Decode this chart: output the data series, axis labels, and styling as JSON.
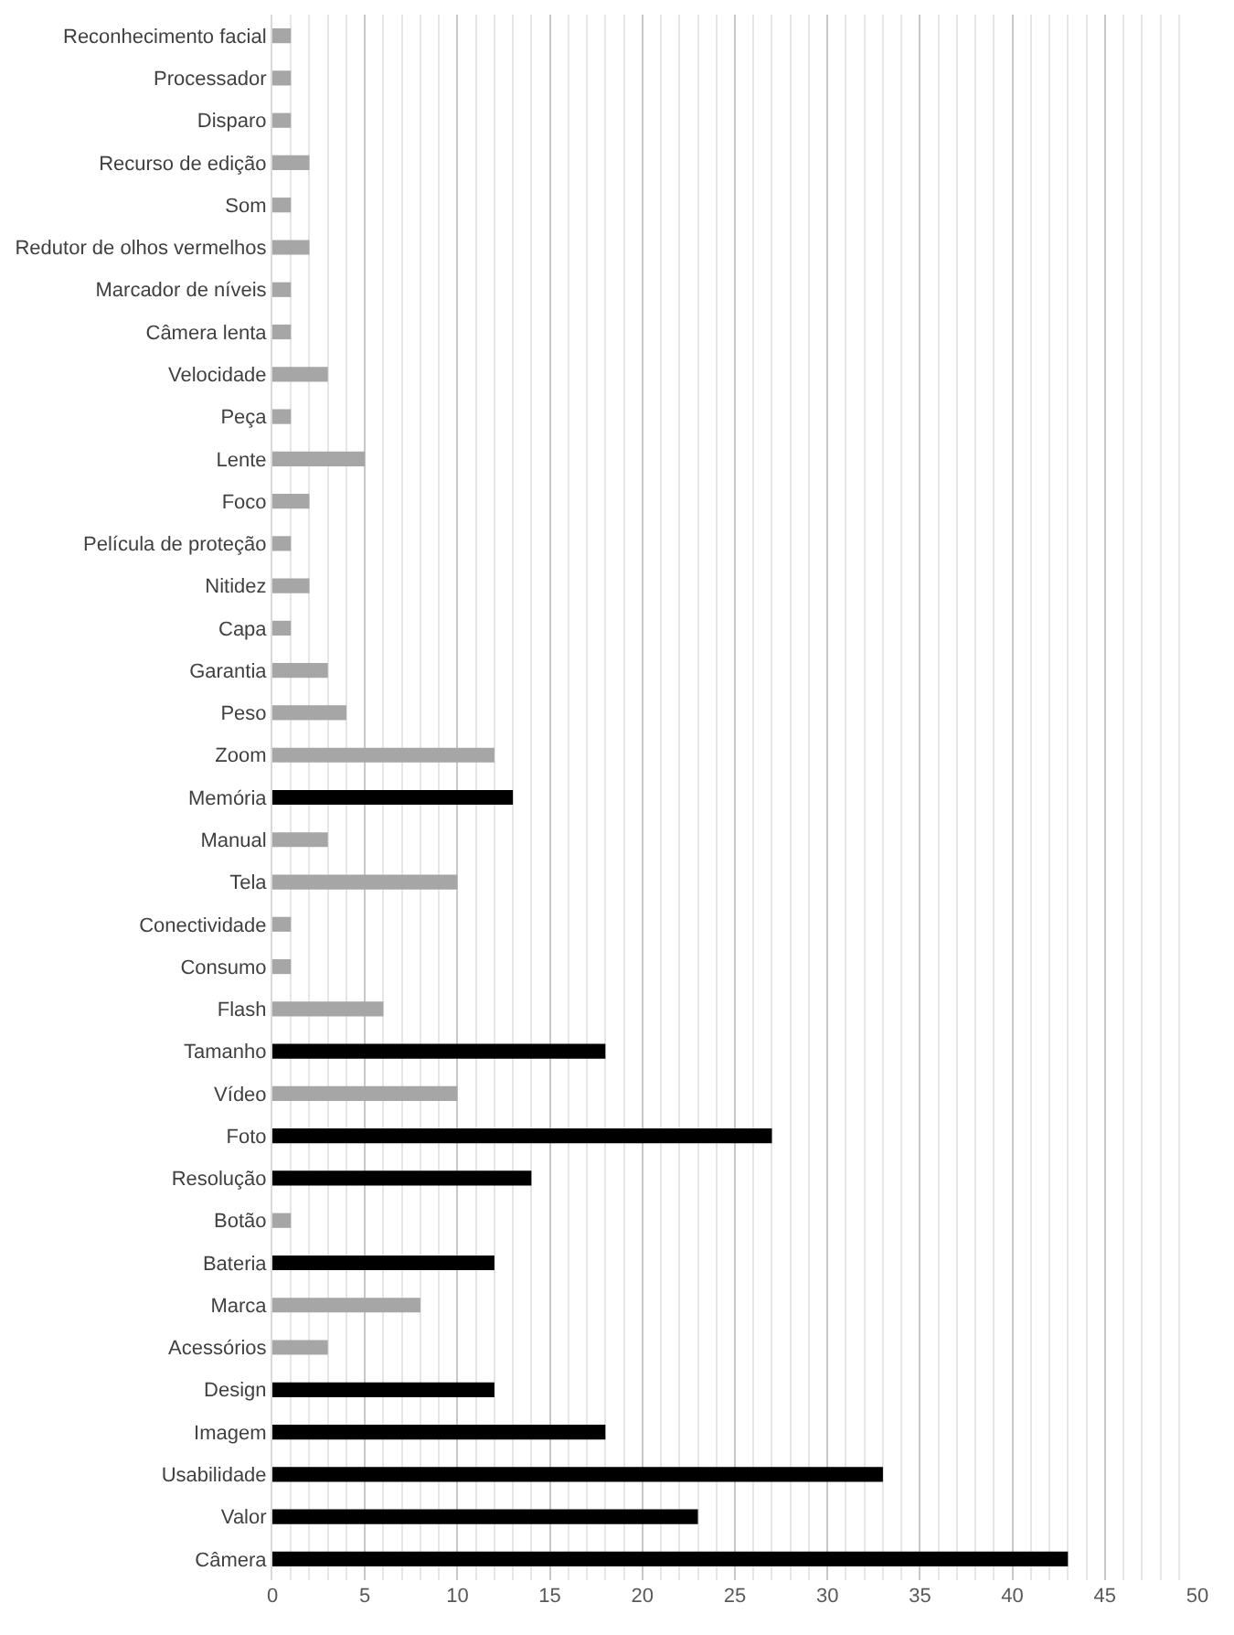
{
  "chart_data": {
    "type": "bar",
    "orientation": "horizontal",
    "categories": [
      "Reconhecimento facial",
      "Processador",
      "Disparo",
      "Recurso de edição",
      "Som",
      "Redutor de olhos vermelhos",
      "Marcador de níveis",
      "Câmera lenta",
      "Velocidade",
      "Peça",
      "Lente",
      "Foco",
      "Película de proteção",
      "Nitidez",
      "Capa",
      "Garantia",
      "Peso",
      "Zoom",
      "Memória",
      "Manual",
      "Tela",
      "Conectividade",
      "Consumo",
      "Flash",
      "Tamanho",
      "Vídeo",
      "Foto",
      "Resolução",
      "Botão",
      "Bateria",
      "Marca",
      "Acessórios",
      "Design",
      "Imagem",
      "Usabilidade",
      "Valor",
      "Câmera"
    ],
    "values": [
      1,
      1,
      1,
      2,
      1,
      2,
      1,
      1,
      3,
      1,
      5,
      2,
      1,
      2,
      1,
      3,
      4,
      12,
      13,
      3,
      10,
      1,
      1,
      6,
      18,
      10,
      27,
      14,
      1,
      12,
      8,
      3,
      12,
      18,
      33,
      23,
      43
    ],
    "colors": [
      "#a6a6a6",
      "#a6a6a6",
      "#a6a6a6",
      "#a6a6a6",
      "#a6a6a6",
      "#a6a6a6",
      "#a6a6a6",
      "#a6a6a6",
      "#a6a6a6",
      "#a6a6a6",
      "#a6a6a6",
      "#a6a6a6",
      "#a6a6a6",
      "#a6a6a6",
      "#a6a6a6",
      "#a6a6a6",
      "#a6a6a6",
      "#a6a6a6",
      "#000000",
      "#a6a6a6",
      "#a6a6a6",
      "#a6a6a6",
      "#a6a6a6",
      "#a6a6a6",
      "#000000",
      "#a6a6a6",
      "#000000",
      "#000000",
      "#a6a6a6",
      "#000000",
      "#a6a6a6",
      "#a6a6a6",
      "#000000",
      "#000000",
      "#000000",
      "#000000",
      "#000000"
    ],
    "xlim": [
      0,
      50
    ],
    "xticks": [
      0,
      5,
      10,
      15,
      20,
      25,
      30,
      35,
      40,
      45,
      50
    ],
    "grid": "x",
    "legend": false
  }
}
